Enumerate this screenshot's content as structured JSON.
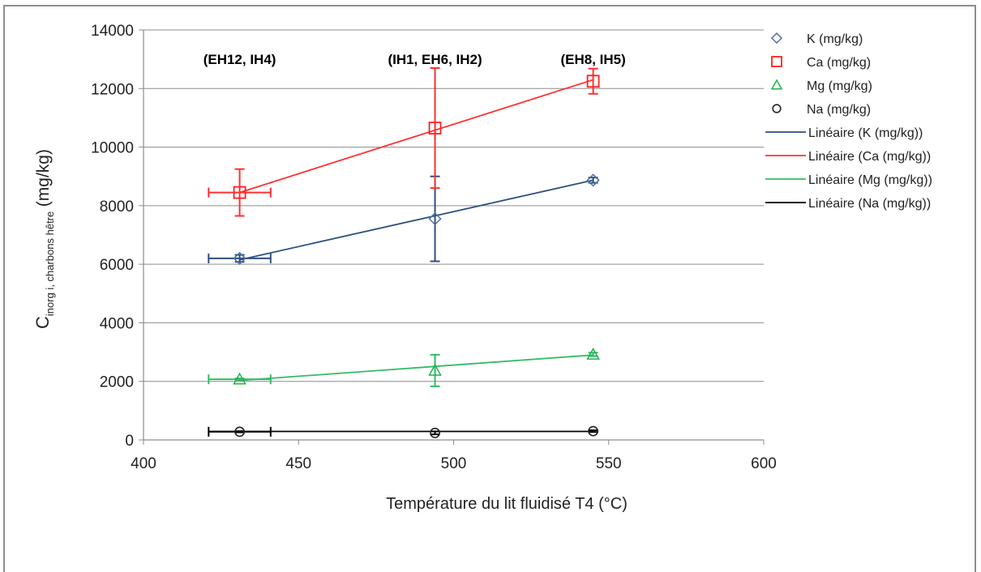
{
  "chart_data": {
    "type": "scatter",
    "xlabel": "Température du lit fluidisé T4 (°C)",
    "ylabel_main": "C",
    "ylabel_sub": "inorg i, charbons hêtre",
    "ylabel_unit": "(mg/kg)",
    "xlim": [
      400,
      600
    ],
    "ylim": [
      0,
      14000
    ],
    "xticks": [
      400,
      450,
      500,
      550,
      600
    ],
    "yticks": [
      0,
      2000,
      4000,
      6000,
      8000,
      10000,
      12000,
      14000
    ],
    "grid": "horizontal",
    "legend_position": "right",
    "annotations": [
      {
        "text": "(EH12, IH4)",
        "x": 431,
        "y": 13000
      },
      {
        "text": "(IH1, EH6, IH2)",
        "x": 494,
        "y": 13000
      },
      {
        "text": "(EH8, IH5)",
        "x": 545,
        "y": 13000
      }
    ],
    "series": [
      {
        "name": "K (mg/kg)",
        "marker": "diamond",
        "color": "#4f6fa8",
        "line_color": "#2f4f7f",
        "x": [
          431,
          494,
          545
        ],
        "y": [
          6200,
          7550,
          8870
        ],
        "yerr": [
          120,
          1450,
          90
        ],
        "xerr": [
          10,
          0,
          0
        ]
      },
      {
        "name": "Ca (mg/kg)",
        "marker": "square",
        "color": "#ff2020",
        "line_color": "#ff3030",
        "x": [
          431,
          494,
          545
        ],
        "y": [
          8450,
          10650,
          12250
        ],
        "yerr": [
          800,
          2050,
          430
        ],
        "xerr": [
          10,
          0,
          0
        ]
      },
      {
        "name": "Mg (mg/kg)",
        "marker": "triangle",
        "color": "#22b050",
        "line_color": "#33bb66",
        "x": [
          431,
          494,
          545
        ],
        "y": [
          2070,
          2370,
          2920
        ],
        "yerr": [
          30,
          540,
          60
        ],
        "xerr": [
          10,
          0,
          0
        ]
      },
      {
        "name": "Na (mg/kg)",
        "marker": "circle",
        "color": "#222222",
        "line_color": "#000000",
        "x": [
          431,
          494,
          545
        ],
        "y": [
          280,
          240,
          300
        ],
        "yerr": [
          20,
          50,
          30
        ],
        "xerr": [
          10,
          0,
          0
        ]
      }
    ],
    "trendlines": [
      {
        "name": "Linéaire (K (mg/kg))",
        "color": "#2f4f7f",
        "x": [
          431,
          545
        ],
        "y": [
          6150,
          8870
        ]
      },
      {
        "name": "Linéaire (Ca (mg/kg))",
        "color": "#ff3030",
        "x": [
          431,
          545
        ],
        "y": [
          8450,
          12300
        ]
      },
      {
        "name": "Linéaire (Mg (mg/kg))",
        "color": "#33bb66",
        "x": [
          431,
          545
        ],
        "y": [
          2030,
          2900
        ]
      },
      {
        "name": "Linéaire (Na (mg/kg))",
        "color": "#000000",
        "x": [
          421,
          545
        ],
        "y": [
          290,
          290
        ]
      }
    ]
  }
}
